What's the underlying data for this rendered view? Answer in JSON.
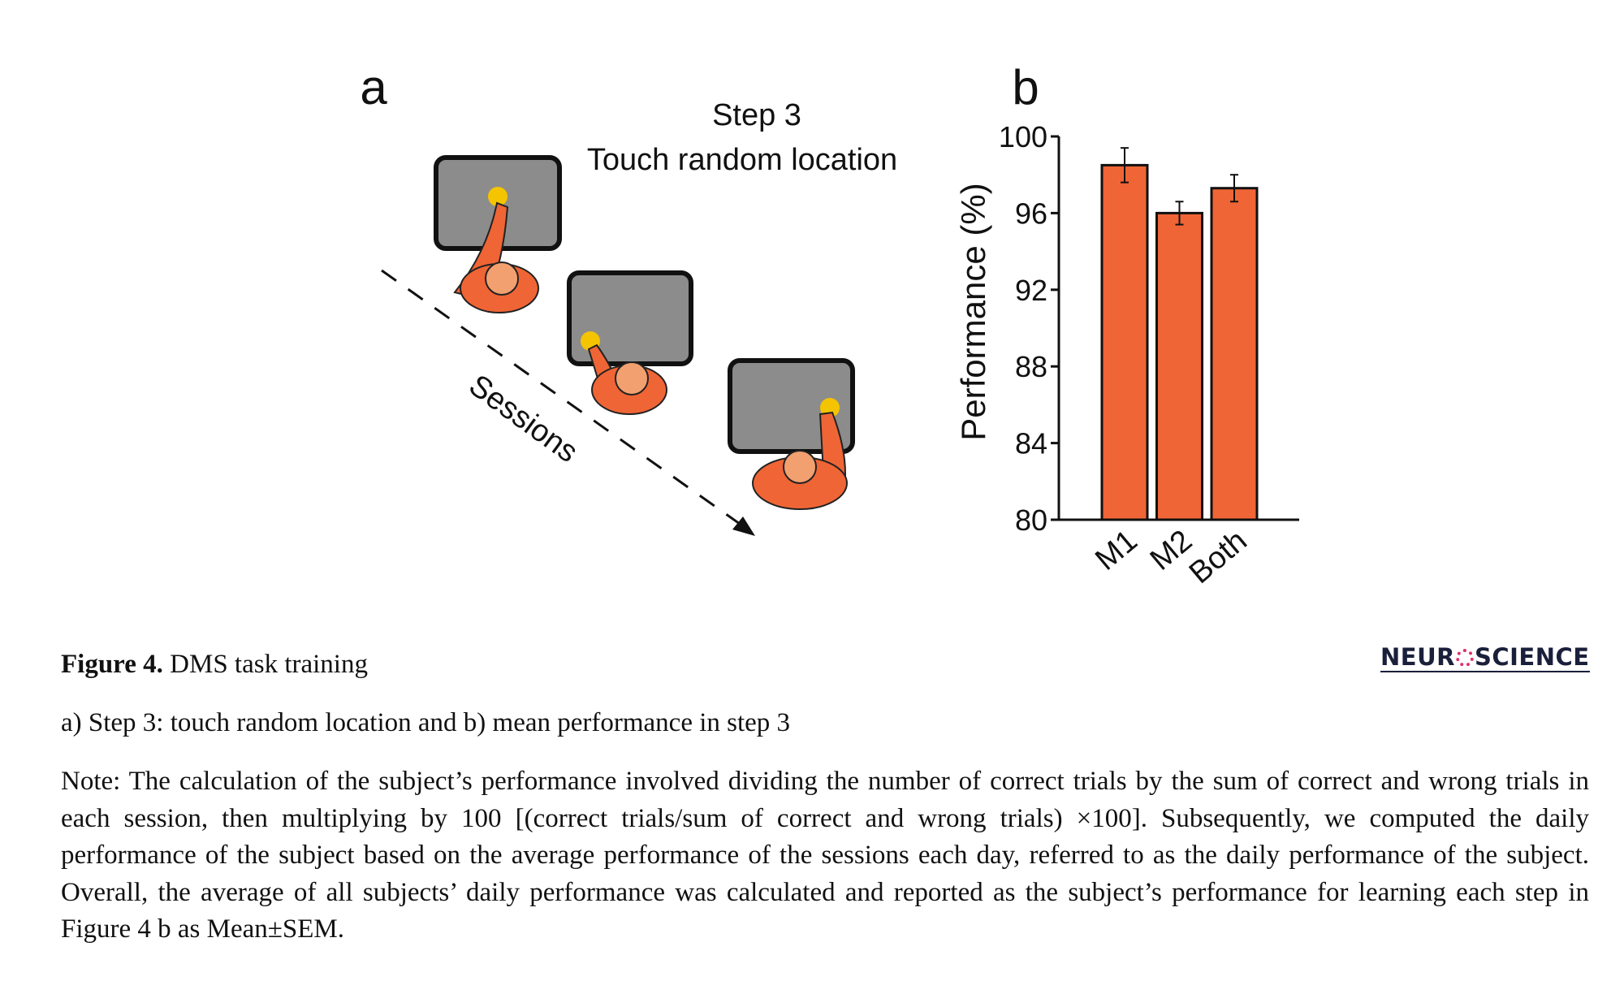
{
  "figure": {
    "panel_a": {
      "label": "a",
      "title_line1": "Step 3",
      "title_line2": "Touch random location",
      "axis_label": "Sessions"
    },
    "panel_b_label": "b"
  },
  "chart_data": {
    "type": "bar",
    "ylabel": "Performance (%)",
    "categories": [
      "M1",
      "M2",
      "Both"
    ],
    "values": [
      98.5,
      96,
      97.3
    ],
    "errors": [
      0.9,
      0.6,
      0.7
    ],
    "color": "#f06535",
    "ylim": [
      80,
      100
    ],
    "yticks": [
      80,
      84,
      88,
      92,
      96,
      100
    ]
  },
  "caption": {
    "title": "Figure 4.",
    "title_text": "DMS task training",
    "line": "a) Step 3: touch random location and b) mean performance in step 3",
    "note": "Note: The calculation of the subject’s performance involved dividing the number of correct trials by the sum of correct and wrong trials in each session, then multiplying by 100 [(correct trials/sum of correct and wrong trials) ×100]. Subsequently, we computed the daily performance of the subject based on the average performance of the sessions each day, referred to as the daily performance of the subject. Overall, the average of all subjects’ daily performance was calculated and reported as the subject’s performance for learning each step in Figure 4 b as Mean±SEM."
  },
  "logo": {
    "left": "NEUR",
    "right": "SCIENCE"
  }
}
